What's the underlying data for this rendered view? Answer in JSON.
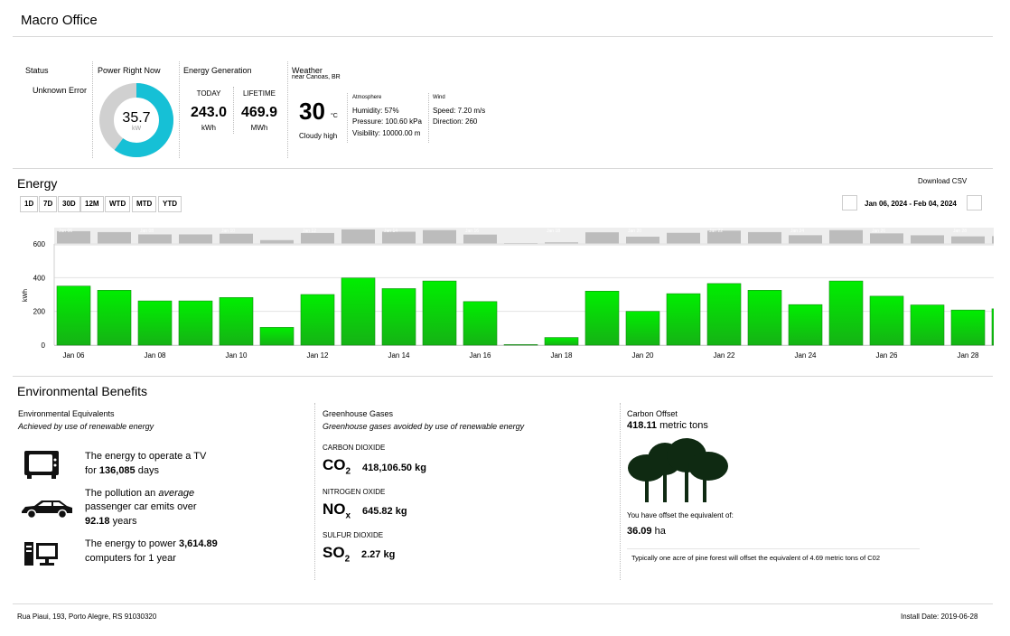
{
  "site": {
    "title": "Macro Office"
  },
  "status": {
    "label": "Status",
    "value": "Unknown Error"
  },
  "power": {
    "label": "Power Right Now",
    "value": "35.7",
    "unit": "kW",
    "gauge_fraction": 0.6
  },
  "energy_generation": {
    "label": "Energy Generation",
    "today": {
      "label": "TODAY",
      "value": "243.0",
      "unit": "kWh"
    },
    "lifetime": {
      "label": "LIFETIME",
      "value": "469.9",
      "unit": "MWh"
    }
  },
  "weather": {
    "label": "Weather",
    "location": "near Canoas, BR",
    "temp": "30",
    "temp_unit": "°C",
    "condition": "Cloudy high",
    "atmosphere": {
      "label": "Atmosphere",
      "humidity": "Humidity: 57%",
      "pressure": "Pressure: 100.60 kPa",
      "visibility": "Visibility: 10000.00 m"
    },
    "wind": {
      "label": "Wind",
      "speed": "Speed: 7.20 m/s",
      "direction": "Direction: 260"
    }
  },
  "energy": {
    "title": "Energy",
    "download": "Download CSV",
    "ranges": [
      "1D",
      "7D",
      "30D",
      "12M",
      "WTD",
      "MTD",
      "YTD"
    ],
    "date_range": "Jan 06, 2024 - Feb 04, 2024"
  },
  "chart_data": {
    "type": "bar",
    "ylabel": "kWh",
    "ylim": [
      0,
      600
    ],
    "yticks": [
      0,
      200,
      400,
      600
    ],
    "categories": [
      "Jan 06",
      "Jan 07",
      "Jan 08",
      "Jan 09",
      "Jan 10",
      "Jan 11",
      "Jan 12",
      "Jan 13",
      "Jan 14",
      "Jan 15",
      "Jan 16",
      "Jan 17",
      "Jan 18",
      "Jan 19",
      "Jan 20",
      "Jan 21",
      "Jan 22",
      "Jan 23",
      "Jan 24",
      "Jan 25",
      "Jan 26",
      "Jan 27",
      "Jan 28",
      "Jan 29"
    ],
    "values": [
      350,
      325,
      262,
      262,
      282,
      105,
      300,
      398,
      335,
      380,
      258,
      3,
      45,
      320,
      200,
      305,
      365,
      325,
      240,
      380,
      290,
      238,
      208,
      215
    ],
    "xtick_labels": [
      "Jan 06",
      "Jan 08",
      "Jan 10",
      "Jan 12",
      "Jan 14",
      "Jan 16",
      "Jan 18",
      "Jan 20",
      "Jan 22",
      "Jan 24",
      "Jan 26",
      "Jan 28"
    ],
    "overview_labels": [
      "Jan 06",
      "Jan 08",
      "Jan 10",
      "Jan 12",
      "Jan 14",
      "Jan 16",
      "Jan 18",
      "Jan 20",
      "Jan 22",
      "Jan 24",
      "Jan 26",
      "Jan 28"
    ],
    "bar_color": "#22cc22",
    "overview_color": "#bcbcbc"
  },
  "env": {
    "title": "Environmental Benefits",
    "equivalents": {
      "label": "Environmental Equivalents",
      "subtitle": "Achieved by use of renewable energy",
      "tv_a": "The energy to operate a TV",
      "tv_b": "for",
      "tv_value": "136,085",
      "tv_c": "days",
      "car_a": "The pollution an",
      "car_b": "average",
      "car_c": "passenger car emits over",
      "car_value": "92.18",
      "car_d": "years",
      "pc_a": "The energy to power",
      "pc_value": "3,614.89",
      "pc_b": "computers for 1 year"
    },
    "ghg": {
      "label": "Greenhouse Gases",
      "subtitle": "Greenhouse gases avoided by use of renewable energy",
      "co2": {
        "name": "CARBON DIOXIDE",
        "symbol": "CO",
        "sub": "2",
        "value": "418,106.50 kg"
      },
      "nox": {
        "name": "NITROGEN OXIDE",
        "symbol": "NO",
        "sub": "x",
        "value": "645.82 kg"
      },
      "so2": {
        "name": "SULFUR DIOXIDE",
        "symbol": "SO",
        "sub": "2",
        "value": "2.27 kg"
      }
    },
    "carbon": {
      "label": "Carbon Offset",
      "value": "418.11",
      "unit": "metric tons",
      "offset_text": "You have offset the equivalent of:",
      "offset_value": "36.09",
      "offset_unit": "ha",
      "note": "Typically one acre of pine forest will offset the equivalent of 4.69 metric tons of C02"
    }
  },
  "footer": {
    "address": "Rua Piaui, 193, Porto Alegre, RS  91030320",
    "install": "Install Date: 2019-06-28"
  }
}
